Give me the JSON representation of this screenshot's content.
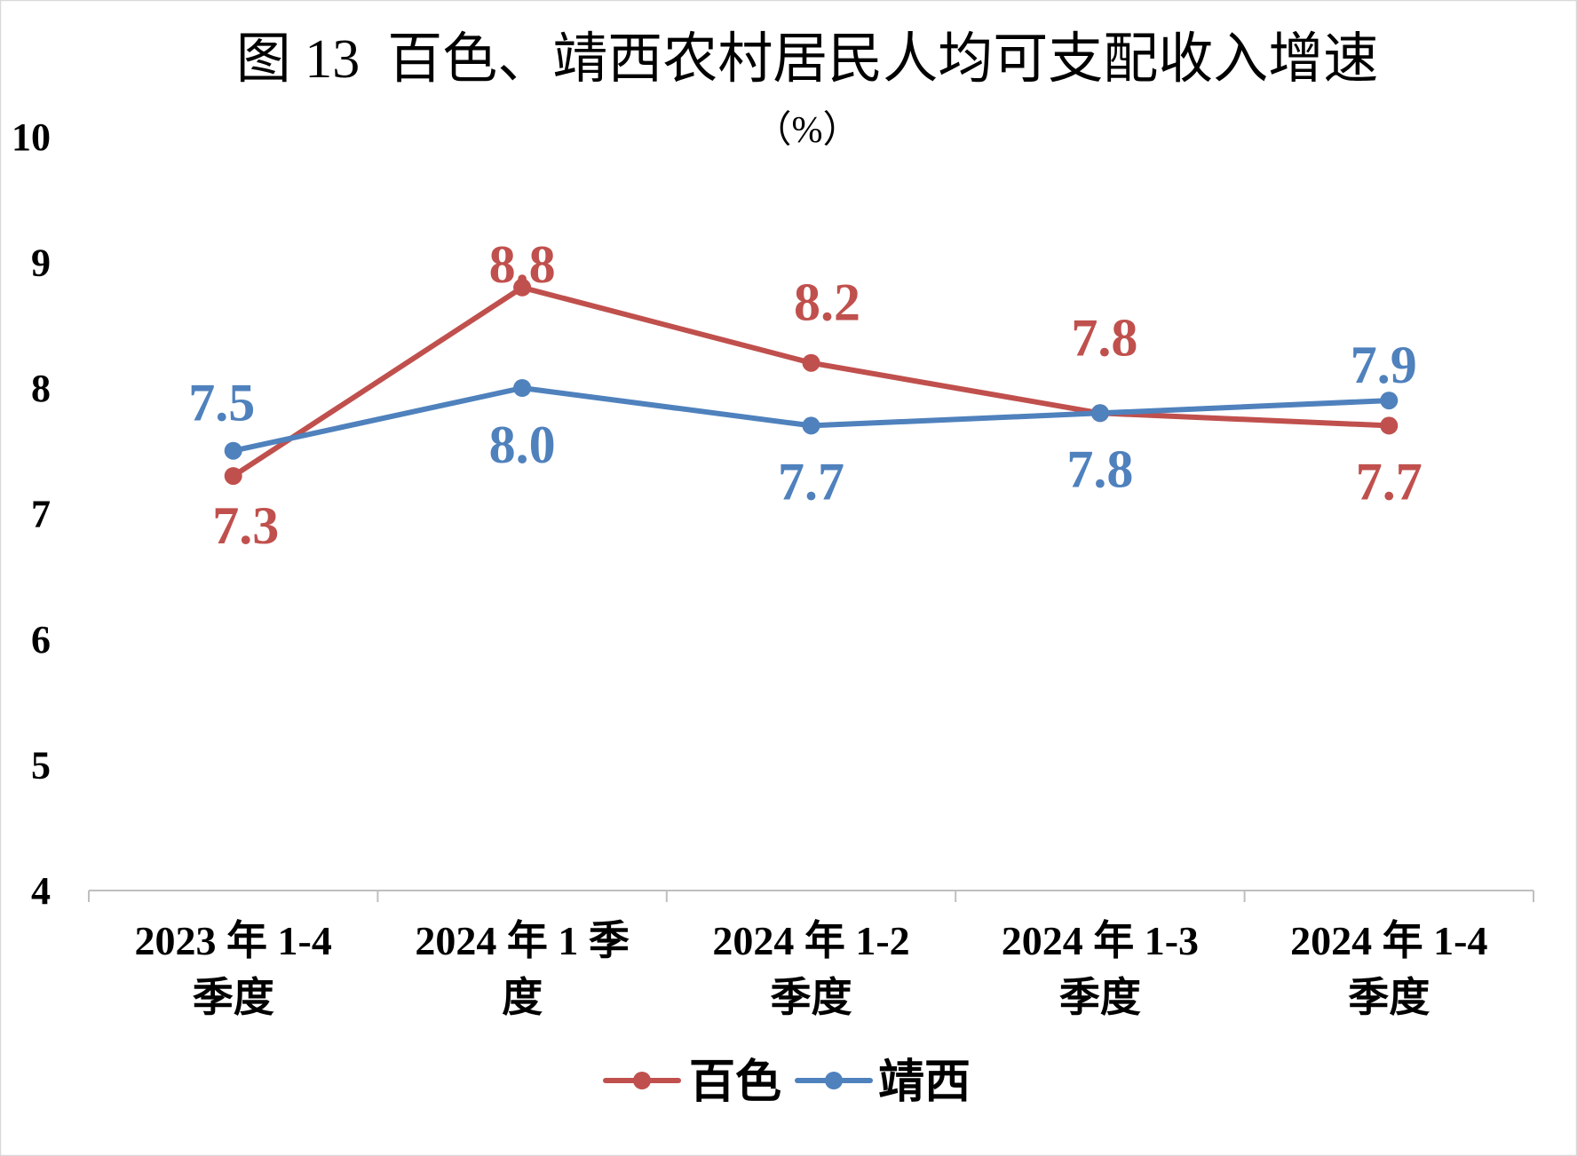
{
  "chart_data": {
    "type": "line",
    "title": "图 13  百色、靖西农村居民人均可支配收入增速",
    "subtitle": "（%）",
    "categories": [
      [
        "2023 年 1-4",
        "季度"
      ],
      [
        "2024 年 1 季",
        "度"
      ],
      [
        "2024 年 1-2",
        "季度"
      ],
      [
        "2024 年 1-3",
        "季度"
      ],
      [
        "2024 年 1-4",
        "季度"
      ]
    ],
    "series": [
      {
        "name": "百色",
        "values": [
          7.3,
          8.8,
          8.2,
          7.8,
          7.7
        ],
        "labels": [
          "7.3",
          "8.8",
          "8.2",
          "7.8",
          "7.7"
        ],
        "color": "#C0504D"
      },
      {
        "name": "靖西",
        "values": [
          7.5,
          8.0,
          7.7,
          7.8,
          7.9
        ],
        "labels": [
          "7.5",
          "8.0",
          "7.7",
          "7.8",
          "7.9"
        ],
        "color": "#4F81BD"
      }
    ],
    "xlabel": "",
    "ylabel": "",
    "ylim": [
      4,
      10
    ],
    "yticks": [
      4,
      5,
      6,
      7,
      8,
      9,
      10
    ],
    "grid": false,
    "legend": "bottom",
    "axis_color": "#BFBFBF",
    "border_color": "#D9D9D9"
  }
}
